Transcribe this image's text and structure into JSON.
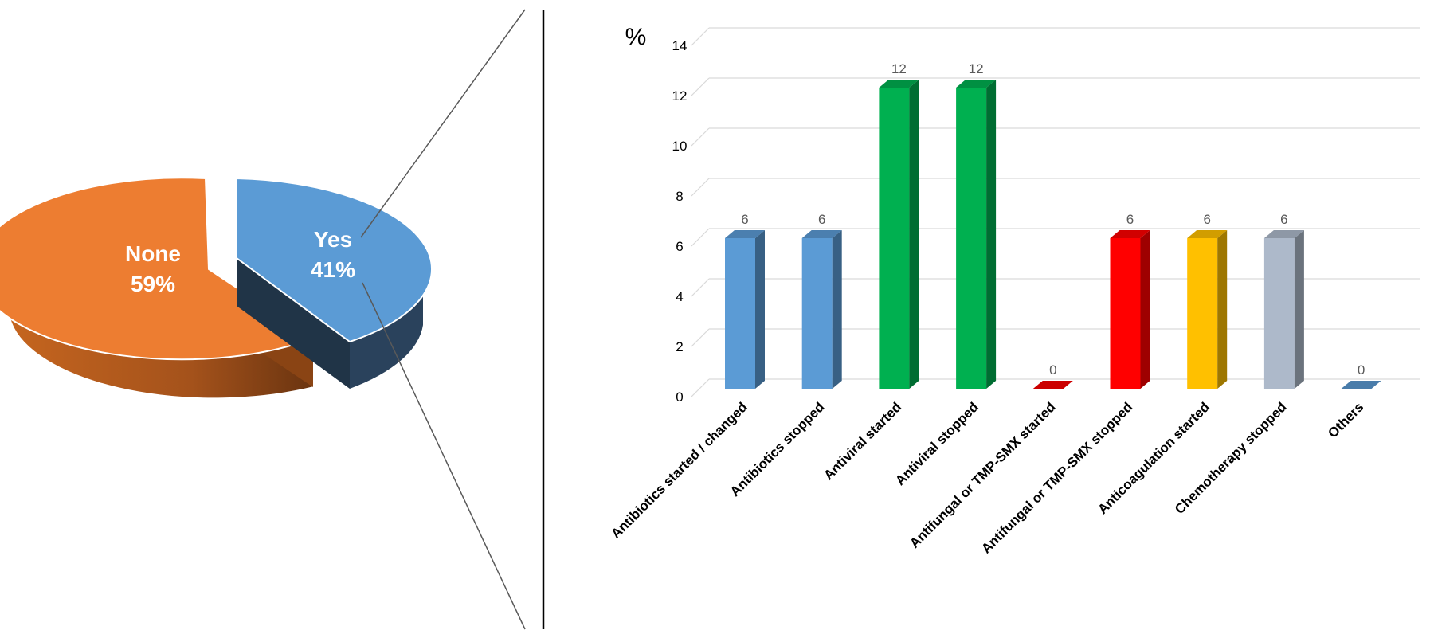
{
  "chart_data": [
    {
      "type": "pie",
      "slices": [
        {
          "label": "None",
          "percent_label": "59%",
          "value": 59,
          "color": "#ED7D31"
        },
        {
          "label": "Yes",
          "percent_label": "41%",
          "value": 41,
          "color": "#5B9BD5"
        }
      ],
      "exploded": "Yes",
      "style": "3d"
    },
    {
      "type": "bar",
      "style": "3d",
      "ylabel": "%",
      "ylim": [
        0,
        14
      ],
      "yticks": [
        "0",
        "2",
        "4",
        "6",
        "8",
        "10",
        "12",
        "14"
      ],
      "grid": true,
      "categories": [
        "Antibiotics started / changed",
        "Antibiotics stopped",
        "Antiviral started",
        "Antiviral stopped",
        "Antifungal or TMP-SMX started",
        "Antifungal or TMP-SMX stopped",
        "Anticoagulation started",
        "Chemotherapy stopped",
        "Others"
      ],
      "values": [
        6,
        6,
        12,
        12,
        0,
        6,
        6,
        6,
        0
      ],
      "data_labels": [
        "6",
        "6",
        "12",
        "12",
        "0",
        "6",
        "6",
        "6",
        "0"
      ],
      "colors": [
        "#5B9BD5",
        "#5B9BD5",
        "#00B050",
        "#00B050",
        "#FF0000",
        "#FF0000",
        "#FFC000",
        "#ADB9CA",
        "#5B9BD5"
      ]
    }
  ]
}
